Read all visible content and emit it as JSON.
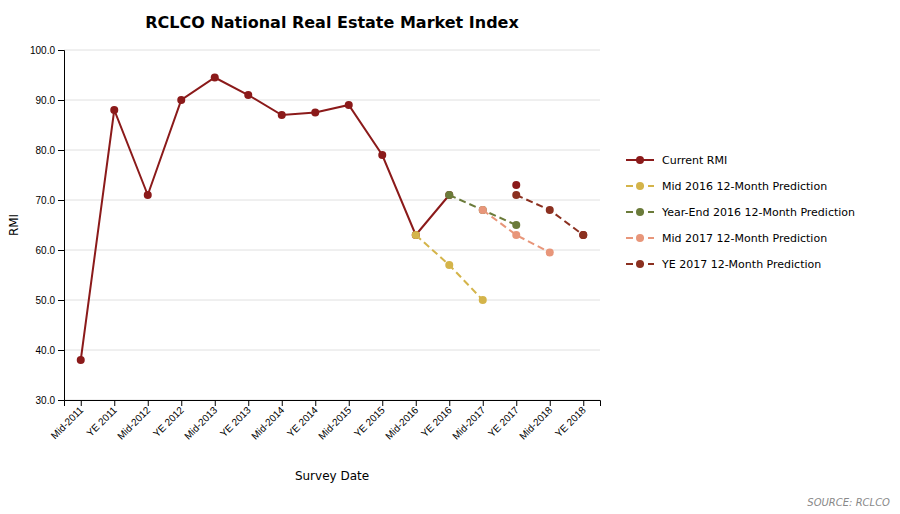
{
  "chart_data": {
    "type": "line",
    "title": "RCLCO National Real Estate Market Index",
    "x_label": "Survey Date",
    "y_label": "RMI",
    "annotations": [
      "SOURCE: RCLCO"
    ],
    "categories": [
      "Mid-2011",
      "YE 2011",
      "Mid-2012",
      "YE 2012",
      "Mid-2013",
      "YE 2013",
      "Mid-2014",
      "YE 2014",
      "Mid-2015",
      "YE 2015",
      "Mid-2016",
      "YE 2016",
      "Mid-2017",
      "YE 2017",
      "Mid-2018",
      "YE 2018"
    ],
    "series": [
      {
        "name": "Current RMI",
        "color": "#8B1A1A",
        "marker": "circle",
        "line_style": "solid",
        "values": [
          38.0,
          88.0,
          71.0,
          90.0,
          94.5,
          91.0,
          87.0,
          87.5,
          89.0,
          79.0,
          63.0,
          71.0,
          null,
          73.0,
          null,
          63.0
        ]
      },
      {
        "name": "Mid 2016 12-Month Prediction",
        "color": "#D4B44A",
        "marker": "circle",
        "line_style": "dashed",
        "values": [
          null,
          null,
          null,
          null,
          null,
          null,
          null,
          null,
          null,
          null,
          63.0,
          57.0,
          50.0,
          null,
          null,
          null
        ]
      },
      {
        "name": "Year-End 2016 12-Month Prediction",
        "color": "#6B7B3A",
        "marker": "circle",
        "line_style": "dashed",
        "values": [
          null,
          null,
          null,
          null,
          null,
          null,
          null,
          null,
          null,
          null,
          null,
          71.0,
          68.0,
          65.0,
          null,
          null
        ]
      },
      {
        "name": "Mid 2017 12-Month Prediction",
        "color": "#E8967A",
        "marker": "circle",
        "line_style": "dashed",
        "values": [
          null,
          null,
          null,
          null,
          null,
          null,
          null,
          null,
          null,
          null,
          null,
          null,
          68.0,
          63.0,
          59.5,
          null
        ]
      },
      {
        "name": "YE 2017 12-Month Prediction",
        "color": "#8B3020",
        "marker": "circle",
        "line_style": "dashed",
        "values": [
          null,
          null,
          null,
          null,
          null,
          null,
          null,
          null,
          null,
          null,
          null,
          null,
          null,
          71.0,
          68.0,
          63.0
        ]
      }
    ],
    "ylim": [
      30,
      100
    ],
    "yticks": [
      {
        "value": 30,
        "label": "30.0"
      },
      {
        "value": 40,
        "label": "40.0"
      },
      {
        "value": 50,
        "label": "50.0"
      },
      {
        "value": 60,
        "label": "60.0"
      },
      {
        "value": 70,
        "label": "70.0"
      },
      {
        "value": 80,
        "label": "80.0"
      },
      {
        "value": 90,
        "label": "90.0"
      },
      {
        "value": 100,
        "label": "100.0"
      }
    ],
    "grid": true,
    "legend": "right"
  }
}
